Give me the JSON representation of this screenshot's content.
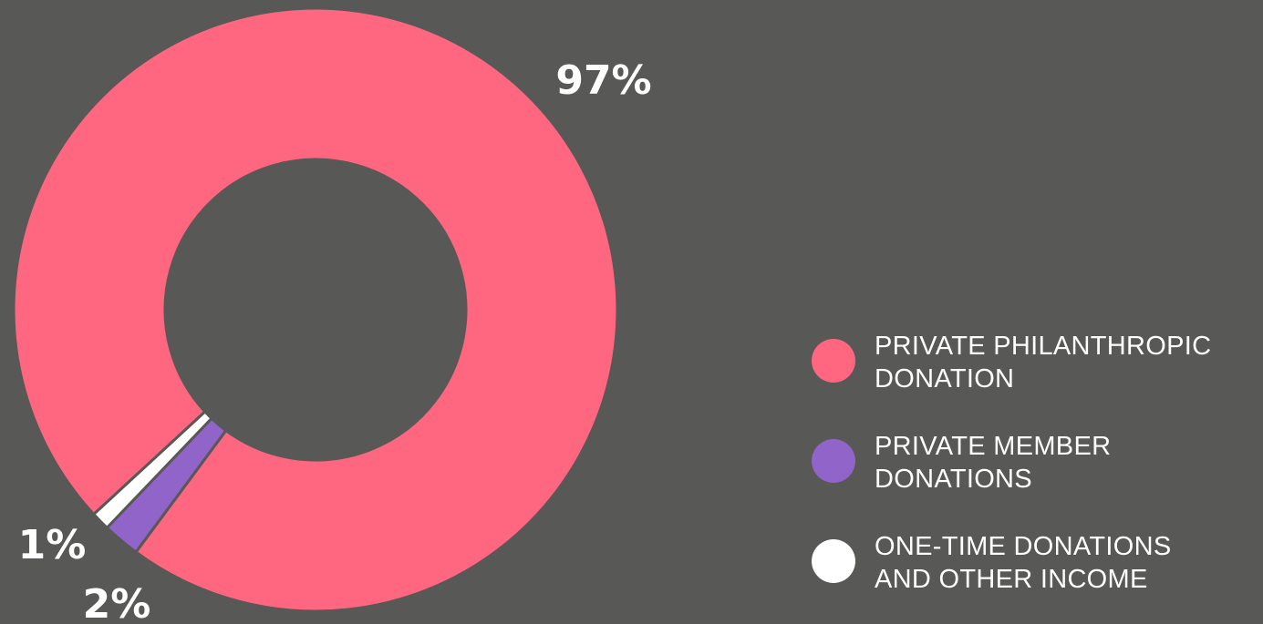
{
  "chart_data": {
    "type": "pie",
    "donut": true,
    "title": "",
    "slices": [
      {
        "label": "PRIVATE PHILANTHROPIC DONATION",
        "value": 97,
        "display": "97%",
        "color": "#ff667f"
      },
      {
        "label": "PRIVATE MEMBER DONATIONS",
        "value": 2,
        "display": "2%",
        "color": "#9064c9"
      },
      {
        "label": "ONE-TIME DONATIONS AND OTHER INCOME",
        "value": 1,
        "display": "1%",
        "color": "#ffffff"
      }
    ],
    "legend": {
      "position": "right",
      "items": [
        {
          "line1": "PRIVATE PHILANTHROPIC",
          "line2": "DONATION",
          "color": "#ff667f"
        },
        {
          "line1": "PRIVATE MEMBER",
          "line2": "DONATIONS",
          "color": "#9064c9"
        },
        {
          "line1": "ONE-TIME DONATIONS",
          "line2": "AND OTHER INCOME",
          "color": "#ffffff"
        }
      ]
    }
  },
  "colors": {
    "background": "#585856"
  }
}
